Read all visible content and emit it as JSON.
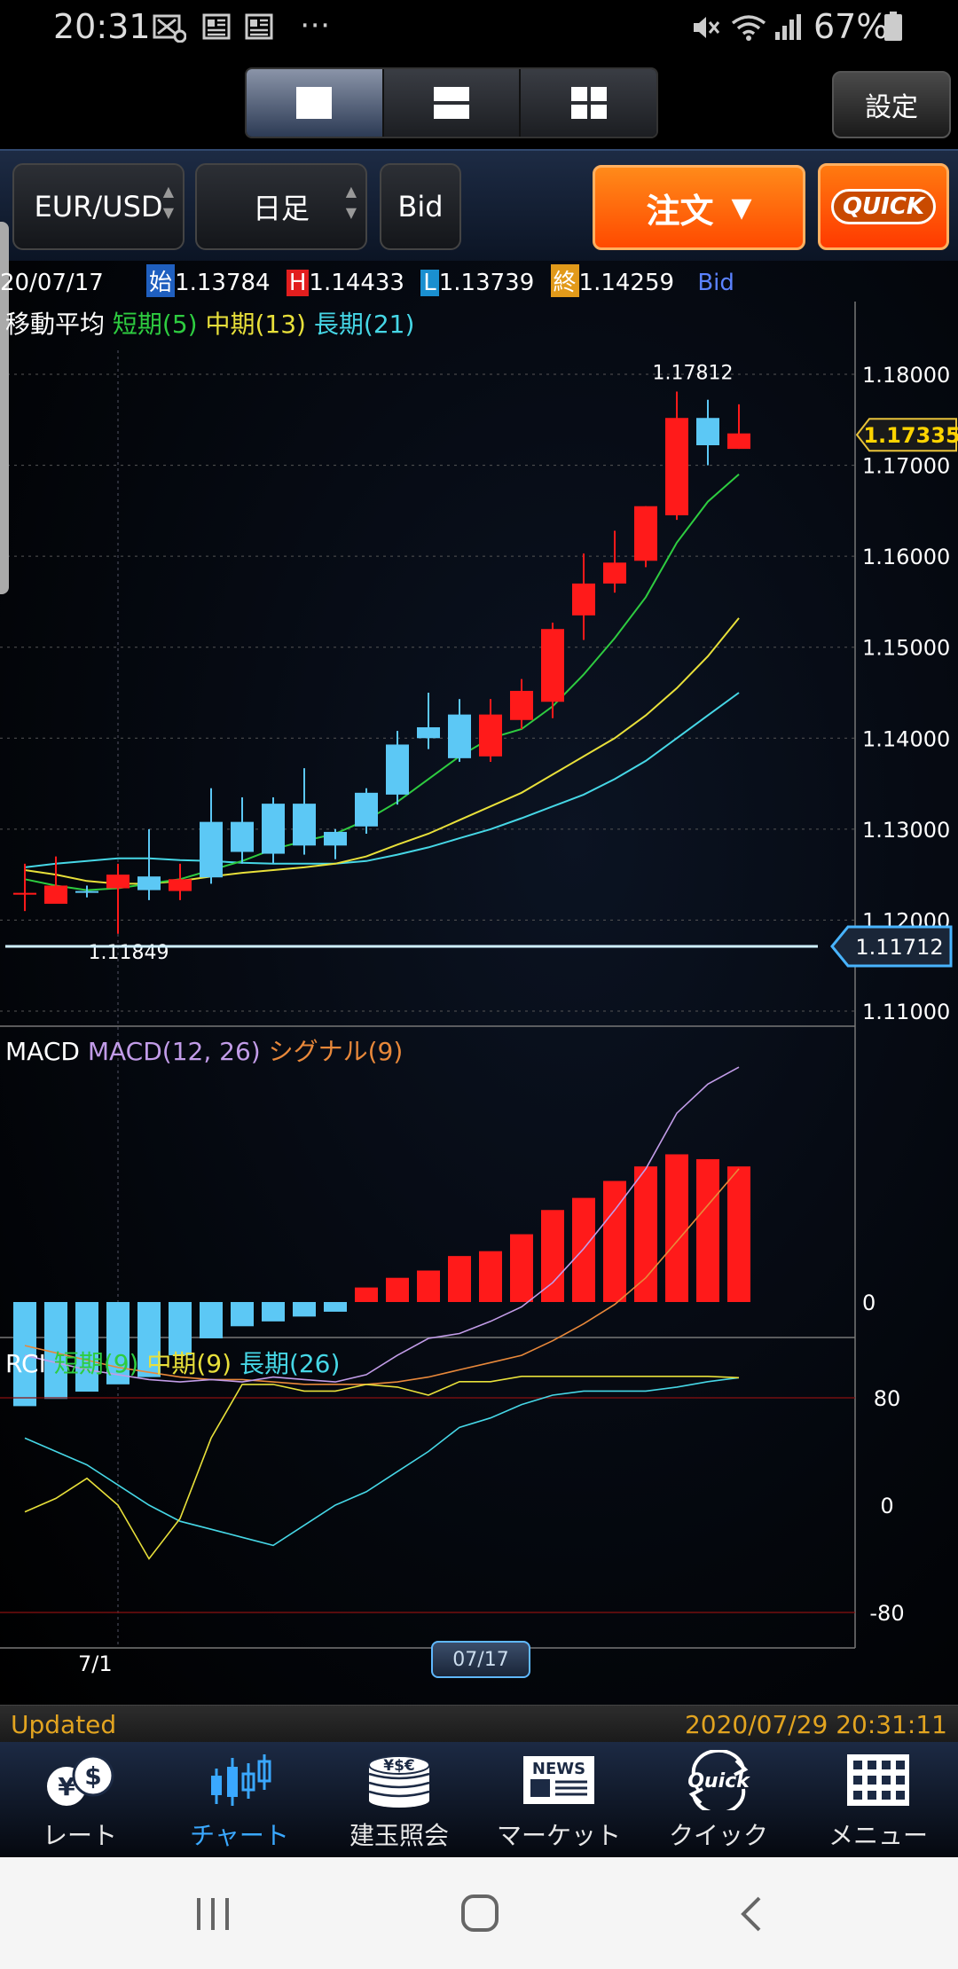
{
  "status_bar": {
    "time": "20:31",
    "left_icons": [
      "image-x-icon",
      "news-icon",
      "news-icon",
      "more-dots-icon"
    ],
    "right_icons": [
      "mute-icon",
      "wifi-icon",
      "signal-icon",
      "battery-icon"
    ],
    "battery": "67%"
  },
  "header": {
    "layout_options": [
      "single-chart-icon",
      "two-chart-icon",
      "four-chart-icon"
    ],
    "active_layout": 0,
    "settings_label": "設定"
  },
  "toolbar": {
    "pair": "EUR/USD",
    "timeframe": "日足",
    "price_side": "Bid",
    "order_label": "注文",
    "quick_label": "QUICK"
  },
  "ohlc": {
    "date": "20/07/17",
    "open_tag": "始",
    "open": "1.13784",
    "high_tag": "H",
    "high": "1.14433",
    "low_tag": "L",
    "low": "1.13739",
    "close_tag": "終",
    "close": "1.14259",
    "side": "Bid"
  },
  "ma_legend": {
    "title": "移動平均",
    "short": "短期(5)",
    "mid": "中期(13)",
    "long": "長期(21)"
  },
  "macd_legend": {
    "title": "MACD",
    "macd": "MACD(12, 26)",
    "signal": "シグナル(9)"
  },
  "rci_legend": {
    "title": "RCI",
    "short": "短期(9)",
    "mid": "中期(9)",
    "long": "長期(26)"
  },
  "chart_data": [
    {
      "type": "candlestick",
      "y_ticks": [
        "1.18000",
        "1.17000",
        "1.16000",
        "1.15000",
        "1.14000",
        "1.13000",
        "1.12000",
        "1.11000"
      ],
      "ylim": [
        1.1085,
        1.186
      ],
      "current_price_label": "1.17335",
      "current_price": 1.17335,
      "horizontal_line_label": "1.11712",
      "horizontal_line": 1.11712,
      "high_annotation": "1.17812",
      "high_value": 1.17812,
      "low_annotation": "1.11849",
      "low_value": 1.11849,
      "candles": [
        {
          "o": 1.123,
          "h": 1.1262,
          "l": 1.121,
          "c": 1.1228
        },
        {
          "o": 1.1238,
          "h": 1.127,
          "l": 1.122,
          "c": 1.1218
        },
        {
          "o": 1.123,
          "h": 1.1238,
          "l": 1.1225,
          "c": 1.1232
        },
        {
          "o": 1.125,
          "h": 1.1262,
          "l": 1.1185,
          "c": 1.1235
        },
        {
          "o": 1.1233,
          "h": 1.13,
          "l": 1.1222,
          "c": 1.1248
        },
        {
          "o": 1.1245,
          "h": 1.1262,
          "l": 1.1222,
          "c": 1.1232
        },
        {
          "o": 1.1247,
          "h": 1.1345,
          "l": 1.124,
          "c": 1.1308
        },
        {
          "o": 1.1275,
          "h": 1.1335,
          "l": 1.1262,
          "c": 1.1308
        },
        {
          "o": 1.1273,
          "h": 1.1335,
          "l": 1.1262,
          "c": 1.1328
        },
        {
          "o": 1.1282,
          "h": 1.1367,
          "l": 1.1272,
          "c": 1.1328
        },
        {
          "o": 1.1282,
          "h": 1.13,
          "l": 1.1267,
          "c": 1.1297
        },
        {
          "o": 1.1303,
          "h": 1.1345,
          "l": 1.1295,
          "c": 1.134
        },
        {
          "o": 1.1338,
          "h": 1.1408,
          "l": 1.1327,
          "c": 1.1393
        },
        {
          "o": 1.14,
          "h": 1.145,
          "l": 1.1388,
          "c": 1.1412
        },
        {
          "o": 1.1378,
          "h": 1.1443,
          "l": 1.1374,
          "c": 1.1426
        },
        {
          "o": 1.1426,
          "h": 1.1443,
          "l": 1.1374,
          "c": 1.138
        },
        {
          "o": 1.1452,
          "h": 1.1465,
          "l": 1.141,
          "c": 1.142
        },
        {
          "o": 1.152,
          "h": 1.1527,
          "l": 1.1422,
          "c": 1.144
        },
        {
          "o": 1.157,
          "h": 1.1603,
          "l": 1.1508,
          "c": 1.1535
        },
        {
          "o": 1.1593,
          "h": 1.1628,
          "l": 1.156,
          "c": 1.157
        },
        {
          "o": 1.1655,
          "h": 1.1655,
          "l": 1.1588,
          "c": 1.1595
        },
        {
          "o": 1.1752,
          "h": 1.1781,
          "l": 1.164,
          "c": 1.1645
        },
        {
          "o": 1.1722,
          "h": 1.1772,
          "l": 1.17,
          "c": 1.1752
        },
        {
          "o": 1.1735,
          "h": 1.1767,
          "l": 1.1718,
          "c": 1.1718
        }
      ],
      "ma_short": [
        1.1245,
        1.1238,
        1.1233,
        1.1235,
        1.124,
        1.1245,
        1.1255,
        1.1265,
        1.1278,
        1.1287,
        1.1295,
        1.131,
        1.133,
        1.1355,
        1.138,
        1.14,
        1.141,
        1.1435,
        1.147,
        1.151,
        1.1555,
        1.1615,
        1.166,
        1.169
      ],
      "ma_mid": [
        1.1255,
        1.125,
        1.1243,
        1.124,
        1.124,
        1.1243,
        1.1248,
        1.1252,
        1.1255,
        1.1258,
        1.1262,
        1.127,
        1.1283,
        1.1295,
        1.131,
        1.1325,
        1.134,
        1.136,
        1.138,
        1.14,
        1.1425,
        1.1455,
        1.149,
        1.1532
      ],
      "ma_long": [
        1.1258,
        1.1262,
        1.1265,
        1.1268,
        1.1268,
        1.1266,
        1.1265,
        1.1263,
        1.1262,
        1.1262,
        1.1262,
        1.1265,
        1.1272,
        1.128,
        1.129,
        1.13,
        1.1312,
        1.1325,
        1.1338,
        1.1355,
        1.1375,
        1.14,
        1.1425,
        1.145
      ]
    },
    {
      "type": "macd",
      "zero_label": "0",
      "macd": [
        -0.0022,
        -0.0025,
        -0.0028,
        -0.003,
        -0.0032,
        -0.0033,
        -0.0032,
        -0.0033,
        -0.0031,
        -0.0032,
        -0.0033,
        -0.003,
        -0.0022,
        -0.0015,
        -0.0013,
        -0.0008,
        -0.0002,
        0.0008,
        0.0022,
        0.0038,
        0.0055,
        0.0078,
        0.009,
        0.0097
      ],
      "signal": [
        -0.0018,
        -0.0021,
        -0.0024,
        -0.0027,
        -0.0029,
        -0.0031,
        -0.0032,
        -0.0032,
        -0.0033,
        -0.0034,
        -0.0034,
        -0.0034,
        -0.0033,
        -0.0031,
        -0.0028,
        -0.0025,
        -0.0022,
        -0.0016,
        -0.0009,
        -0.0001,
        0.001,
        0.0025,
        0.004,
        0.0055
      ],
      "histogram": [
        -0.0043,
        -0.004,
        -0.0037,
        -0.0034,
        -0.0031,
        -0.0022,
        -0.0015,
        -0.001,
        -0.0008,
        -0.0006,
        -0.0004,
        0.0006,
        0.001,
        0.0013,
        0.0019,
        0.0021,
        0.0028,
        0.0038,
        0.0043,
        0.005,
        0.0056,
        0.0061,
        0.0059,
        0.0056
      ],
      "ylim": [
        -0.0055,
        0.011
      ]
    },
    {
      "type": "rci",
      "y_ticks": [
        "80",
        "0",
        "-80"
      ],
      "ylim": [
        -100,
        100
      ],
      "short": [
        -5,
        5,
        20,
        0,
        -40,
        -10,
        50,
        90,
        90,
        85,
        85,
        90,
        88,
        82,
        92,
        92,
        96,
        96,
        96,
        96,
        96,
        96,
        96,
        95
      ],
      "mid": [
        -5,
        5,
        20,
        0,
        -40,
        -10,
        50,
        90,
        90,
        85,
        85,
        90,
        88,
        82,
        92,
        92,
        96,
        96,
        96,
        96,
        96,
        96,
        96,
        95
      ],
      "long": [
        50,
        40,
        30,
        15,
        0,
        -12,
        -18,
        -24,
        -30,
        -15,
        0,
        10,
        25,
        40,
        58,
        65,
        75,
        82,
        85,
        85,
        85,
        88,
        92,
        95
      ]
    }
  ],
  "x_axis": {
    "first_label": "7/1",
    "current_date_label": "07/17"
  },
  "updated": {
    "label": "Updated",
    "time": "2020/07/29 20:31:11"
  },
  "bottom_nav": [
    {
      "label": "レート",
      "icon": "currency-icon"
    },
    {
      "label": "チャート",
      "icon": "candlestick-icon"
    },
    {
      "label": "建玉照会",
      "icon": "coins-icon"
    },
    {
      "label": "マーケット",
      "icon": "news-icon"
    },
    {
      "label": "クイック",
      "icon": "quick-icon"
    },
    {
      "label": "メニュー",
      "icon": "grid-icon"
    }
  ],
  "bottom_nav_active": 1,
  "android_nav": [
    "recents-icon",
    "home-icon",
    "back-icon"
  ],
  "colors": {
    "up": "#ff1a1a",
    "down": "#5cc8f5",
    "ma_short": "#2ecc40",
    "ma_mid": "#e8e03a",
    "ma_long": "#46d7e6",
    "macd": "#c29ce8",
    "signal": "#e8883a",
    "hist_pos": "#ff1a1a",
    "hist_neg": "#5cc8f5",
    "accent_orange": "#ff6a00",
    "updated_text": "#e2a420"
  }
}
